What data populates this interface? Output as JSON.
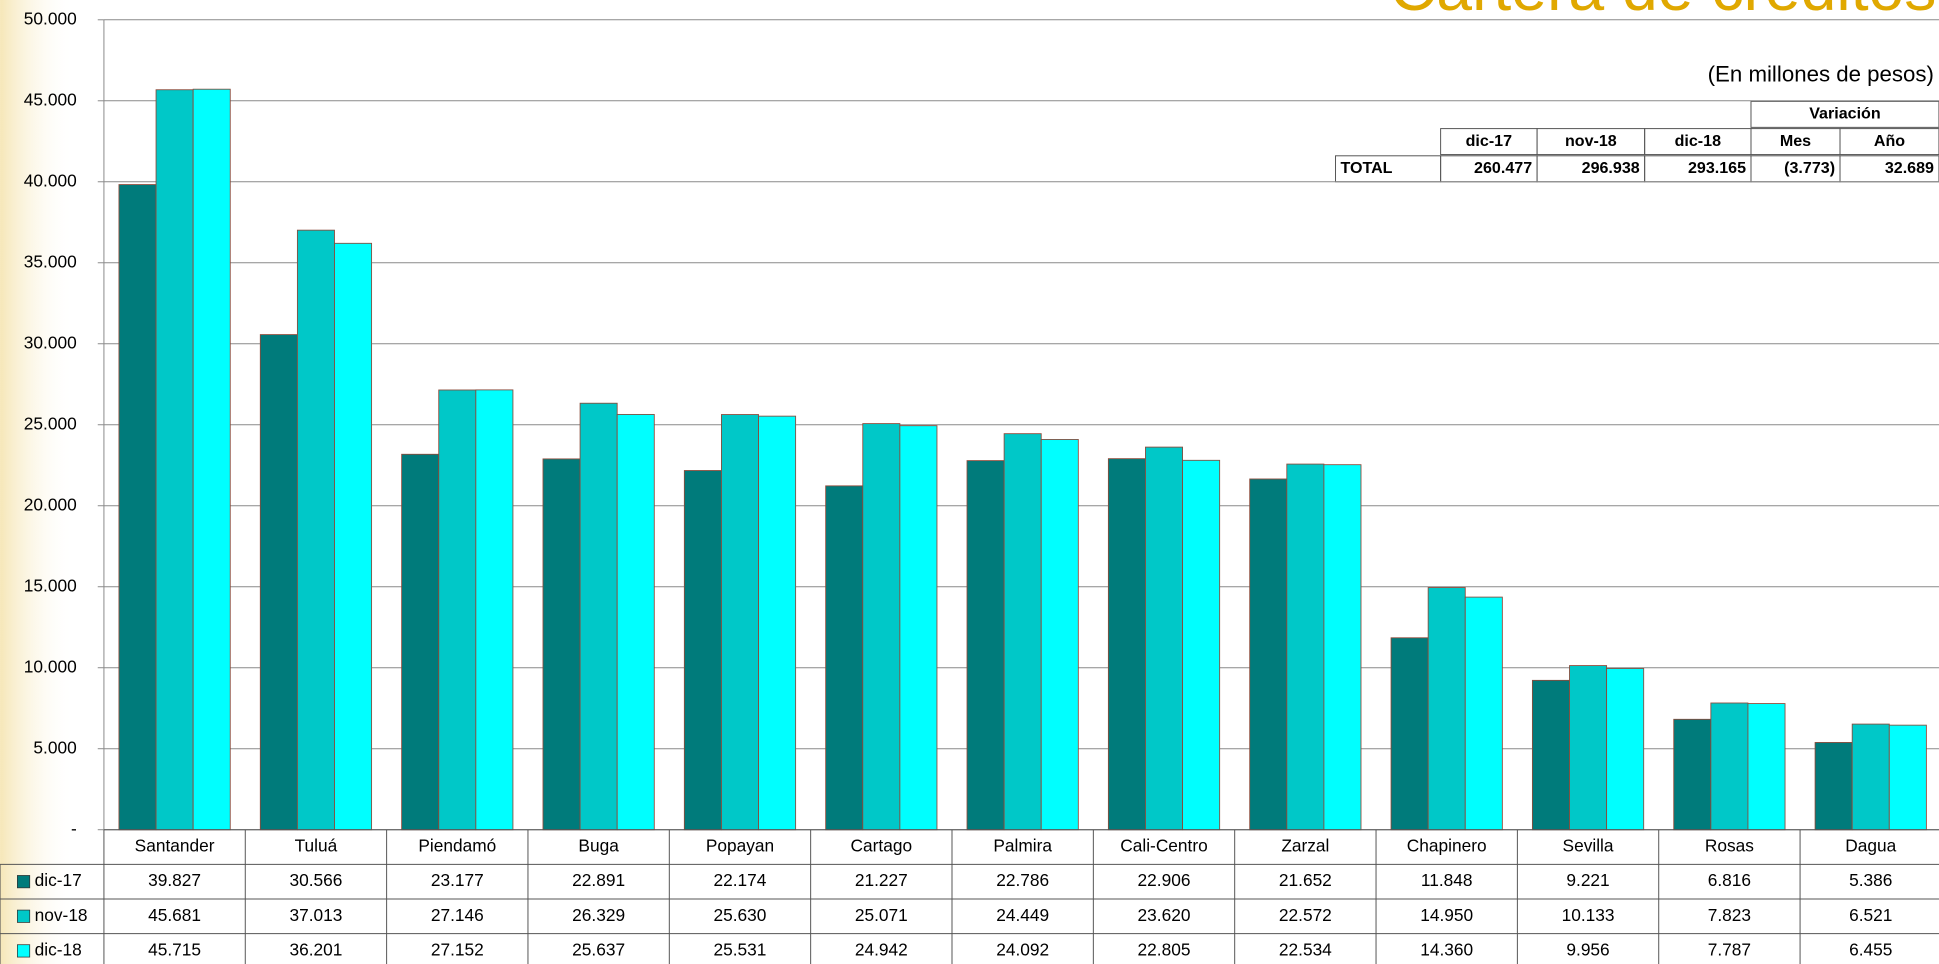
{
  "chart_data": {
    "type": "bar",
    "title": "Cartera de créditos",
    "subtitle": "(En millones de pesos)",
    "categories": [
      "Santander",
      "Tuluá",
      "Piendamó",
      "Buga",
      "Popayan",
      "Cartago",
      "Palmira",
      "Cali-Centro",
      "Zarzal",
      "Chapinero",
      "Sevilla",
      "Rosas",
      "Dagua"
    ],
    "series": [
      {
        "name": "dic-17",
        "color": "#007b7b",
        "values": [
          39827,
          30566,
          23177,
          22891,
          22174,
          21227,
          22786,
          22906,
          21652,
          11848,
          9221,
          6816,
          5386
        ],
        "value_labels": [
          "39.827",
          "30.566",
          "23.177",
          "22.891",
          "22.174",
          "21.227",
          "22.786",
          "22.906",
          "21.652",
          "11.848",
          "9.221",
          "6.816",
          "5.386"
        ]
      },
      {
        "name": "nov-18",
        "color": "#00c8c8",
        "values": [
          45681,
          37013,
          27146,
          26329,
          25630,
          25071,
          24449,
          23620,
          22572,
          14950,
          10133,
          7823,
          6521
        ],
        "value_labels": [
          "45.681",
          "37.013",
          "27.146",
          "26.329",
          "25.630",
          "25.071",
          "24.449",
          "23.620",
          "22.572",
          "14.950",
          "10.133",
          "7.823",
          "6.521"
        ]
      },
      {
        "name": "dic-18",
        "color": "#00ffff",
        "values": [
          45715,
          36201,
          27152,
          25637,
          25531,
          24942,
          24092,
          22805,
          22534,
          14360,
          9956,
          7787,
          6455
        ],
        "value_labels": [
          "45.715",
          "36.201",
          "27.152",
          "25.637",
          "25.531",
          "24.942",
          "24.092",
          "22.805",
          "22.534",
          "14.360",
          "9.956",
          "7.787",
          "6.455"
        ]
      }
    ],
    "ylim": [
      0,
      50000
    ],
    "yticks": [
      {
        "value": 0,
        "label": "-"
      },
      {
        "value": 5000,
        "label": "5.000"
      },
      {
        "value": 10000,
        "label": "10.000"
      },
      {
        "value": 15000,
        "label": "15.000"
      },
      {
        "value": 20000,
        "label": "20.000"
      },
      {
        "value": 25000,
        "label": "25.000"
      },
      {
        "value": 30000,
        "label": "30.000"
      },
      {
        "value": 35000,
        "label": "35.000"
      },
      {
        "value": 40000,
        "label": "40.000"
      },
      {
        "value": 45000,
        "label": "45.000"
      },
      {
        "value": 50000,
        "label": "50.000"
      }
    ],
    "grid": true
  },
  "summary_table": {
    "group_header": "Variación",
    "headers": [
      "dic-17",
      "nov-18",
      "dic-18",
      "Mes",
      "Año"
    ],
    "row_label": "TOTAL",
    "row": [
      "260.477",
      "296.938",
      "293.165",
      "(3.773)",
      "32.689"
    ]
  }
}
